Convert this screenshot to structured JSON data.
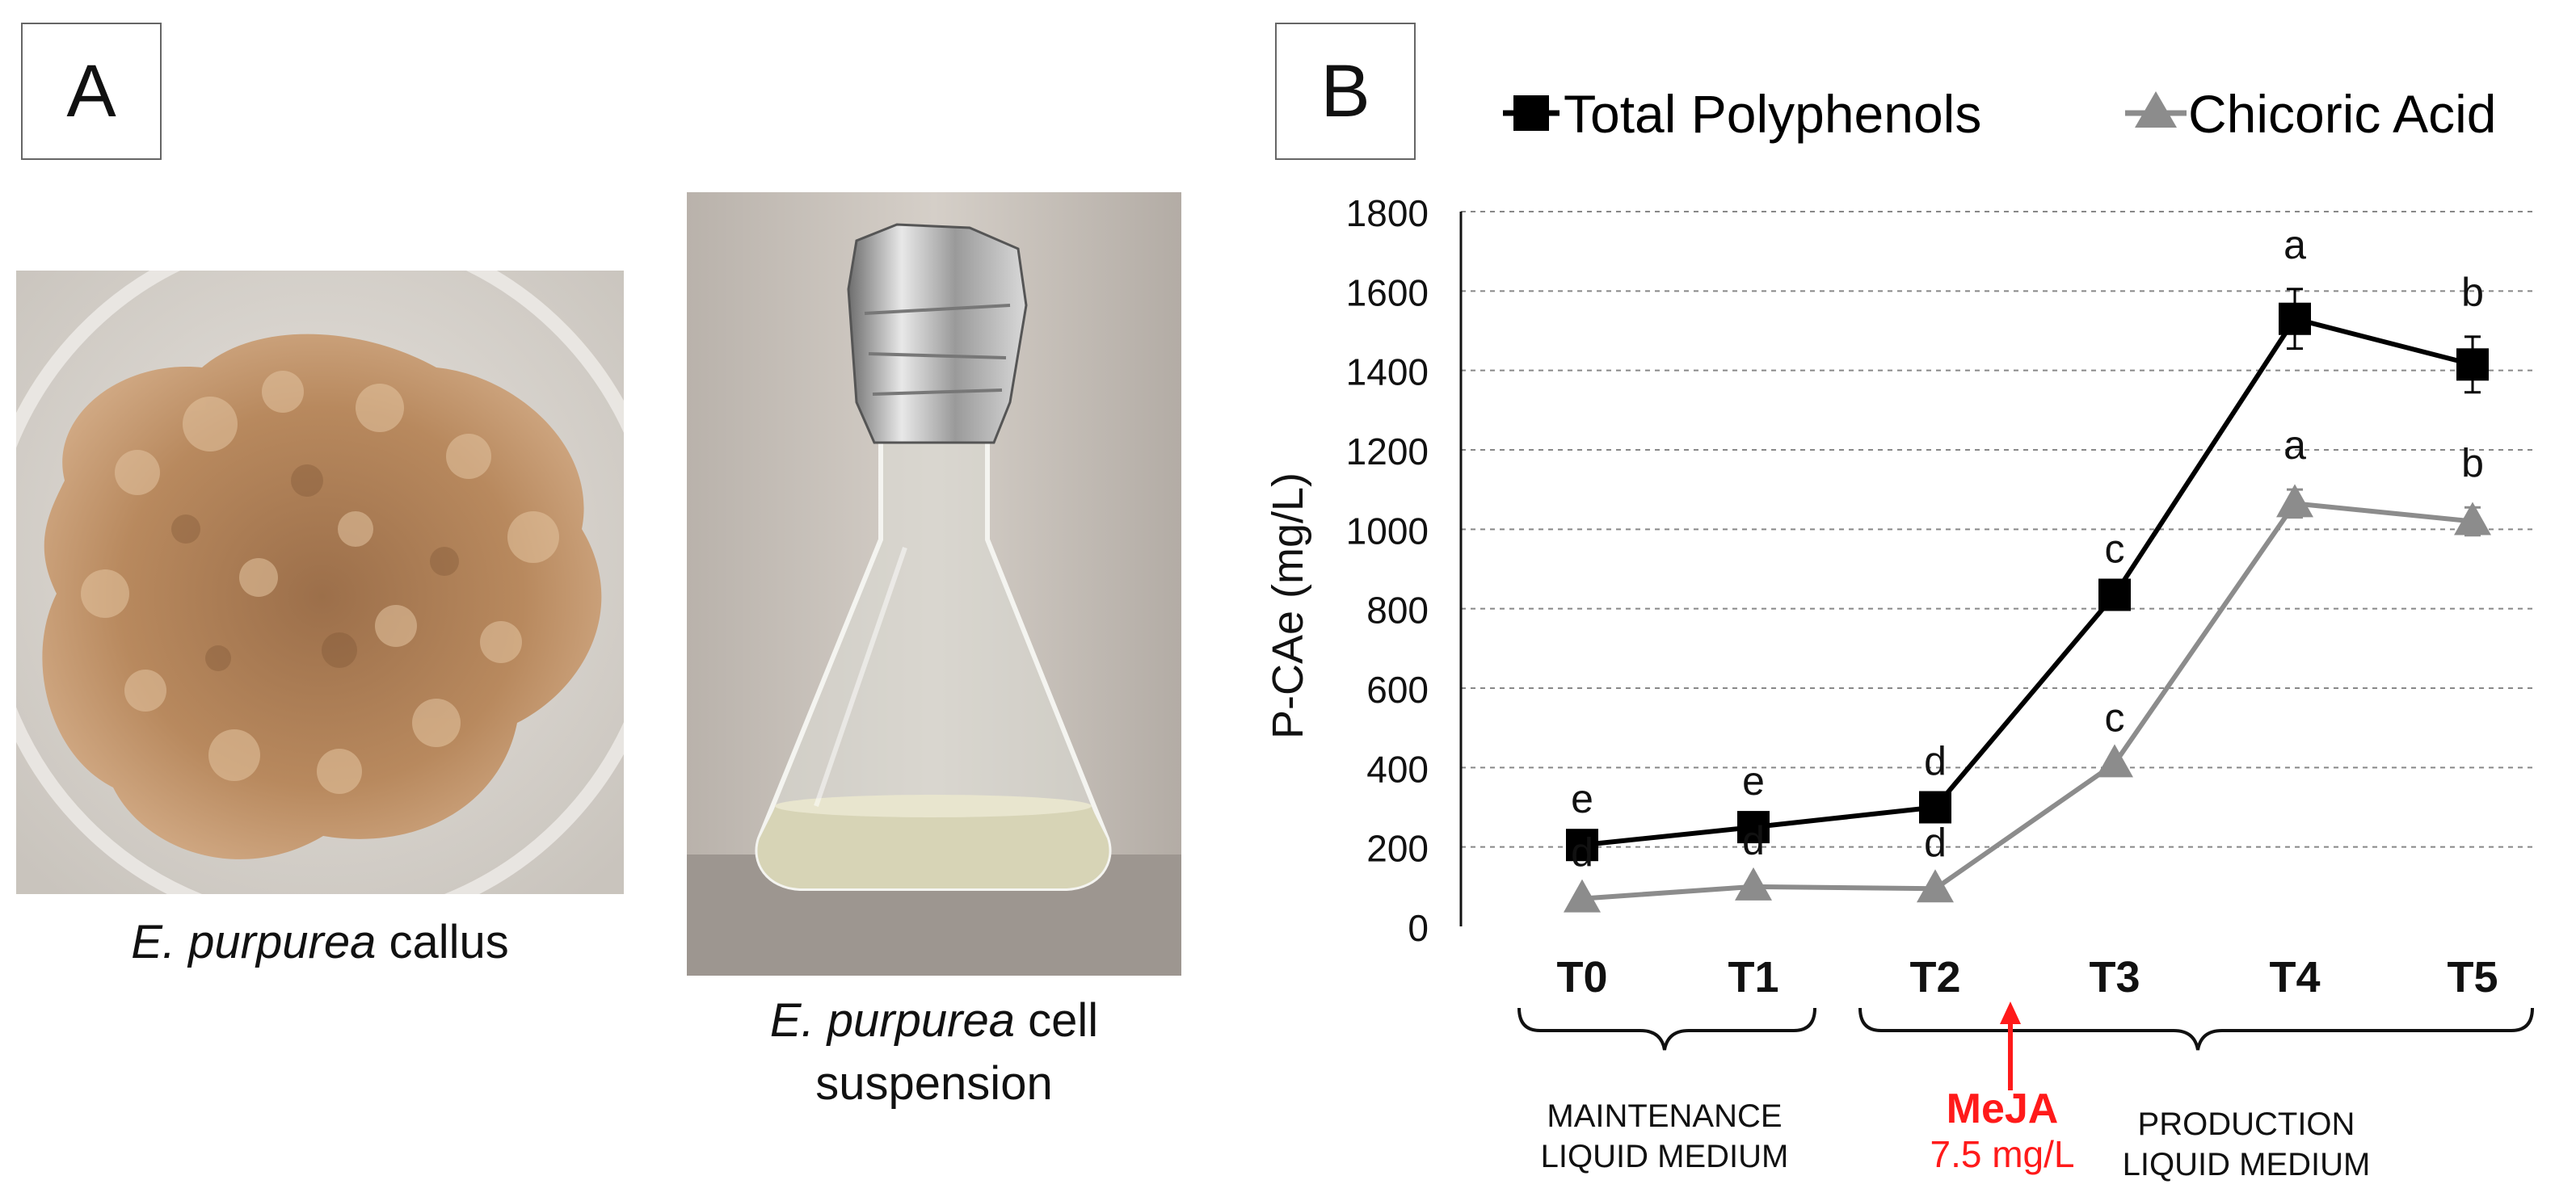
{
  "panel_a": {
    "label": "A",
    "callus_caption": {
      "italic": "E. purpurea",
      "rest": " callus"
    },
    "suspension_caption": {
      "italic": "E. purpurea",
      "rest": " cell",
      "line2": "suspension"
    }
  },
  "panel_b": {
    "label": "B"
  },
  "legend": {
    "total": "Total Polyphenols",
    "chicoric": "Chicoric Acid"
  },
  "colors": {
    "total": "#000000",
    "chicoric": "#8c8c8c",
    "meja": "#ff1a1a",
    "grid": "#888888"
  },
  "timeline": {
    "maintenance_line1": "MAINTENANCE",
    "maintenance_line2": "LIQUID MEDIUM",
    "meja_label": "MeJA",
    "meja_dose": "7.5 mg/L",
    "production_line1": "PRODUCTION",
    "production_line2": "LIQUID MEDIUM"
  },
  "chart_data": {
    "type": "line",
    "title": "",
    "xlabel": "",
    "ylabel": "P-CAe (mg/L)",
    "ylim": [
      0,
      1800
    ],
    "yticks": [
      0,
      200,
      400,
      600,
      800,
      1000,
      1200,
      1400,
      1600,
      1800
    ],
    "grid": true,
    "legend_position": "top",
    "categories": [
      "T0",
      "T1",
      "T2",
      "T3",
      "T4",
      "T5"
    ],
    "series": [
      {
        "name": "Total Polyphenols",
        "marker": "square",
        "values": [
          205,
          250,
          300,
          835,
          1530,
          1415
        ],
        "errors": [
          0,
          0,
          0,
          0,
          75,
          70
        ],
        "labels": [
          "e",
          "e",
          "d",
          "c",
          "a",
          "b"
        ]
      },
      {
        "name": "Chicoric Acid",
        "marker": "triangle",
        "values": [
          70,
          100,
          95,
          410,
          1065,
          1020
        ],
        "errors": [
          0,
          0,
          0,
          0,
          35,
          35
        ],
        "labels": [
          "d",
          "d",
          "d",
          "c",
          "a",
          "b"
        ]
      }
    ]
  }
}
